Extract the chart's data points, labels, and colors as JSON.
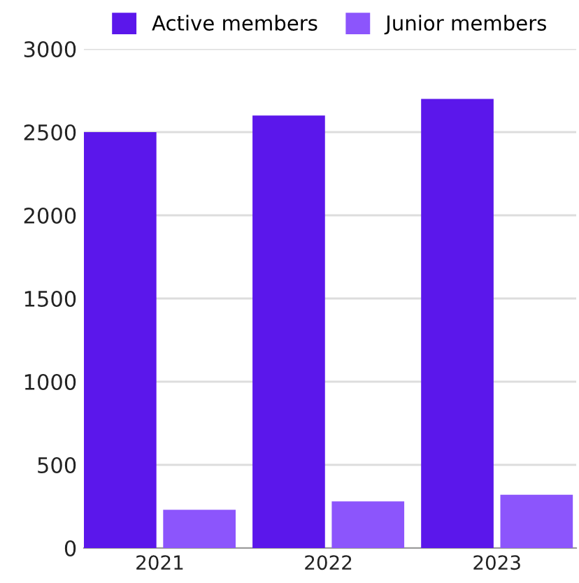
{
  "chart_data": {
    "type": "bar",
    "categories": [
      "2021",
      "2022",
      "2023"
    ],
    "series": [
      {
        "name": "Active members",
        "color": "#5b17eb",
        "values": [
          2500,
          2600,
          2700
        ]
      },
      {
        "name": "Junior members",
        "color": "#8c55fc",
        "values": [
          230,
          280,
          320
        ]
      }
    ],
    "ylim": [
      0,
      3000
    ],
    "yticks": [
      0,
      500,
      1000,
      1500,
      2000,
      2500,
      3000
    ],
    "grid": "y",
    "legend": "top"
  }
}
